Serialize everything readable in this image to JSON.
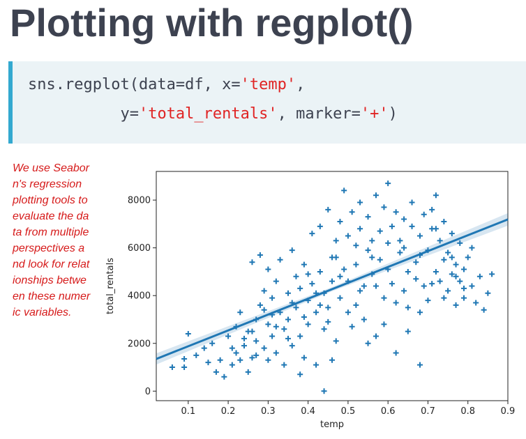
{
  "slide": {
    "title": "Plotting with regplot()",
    "note": "We use Seaborn's regression plotting tools to evaluate the data from multiple perspectives and look for relationships between these numeric variables."
  },
  "code": {
    "line1": {
      "prefix": "sns.regplot(data=df, x=",
      "str1": "'temp'",
      "suffix": ","
    },
    "line2": {
      "indent": "          y=",
      "str1": "'total_rentals'",
      "mid": ", marker=",
      "str2": "'+'",
      "suffix": ")"
    }
  },
  "colors": {
    "title": "#3d4250",
    "code_text": "#3d4250",
    "code_string": "#e02424",
    "code_bg": "#ebf3f6",
    "code_accent": "#33a9d0",
    "note": "#d61a1a",
    "series": "#1f77b4"
  },
  "chart_data": {
    "type": "scatter",
    "xlabel": "temp",
    "ylabel": "total_rentals",
    "xlim": [
      0.02,
      0.9
    ],
    "ylim": [
      -400,
      9200
    ],
    "xticks": [
      "0.1",
      "0.2",
      "0.3",
      "0.4",
      "0.5",
      "0.6",
      "0.7",
      "0.8",
      "0.9"
    ],
    "yticks": [
      "0",
      "2000",
      "4000",
      "6000",
      "8000"
    ],
    "marker": "+",
    "regression": {
      "slope": 6640,
      "intercept": 1215,
      "x_range": [
        0.02,
        0.9
      ]
    },
    "points": [
      [
        0.06,
        1000
      ],
      [
        0.09,
        1350
      ],
      [
        0.09,
        1000
      ],
      [
        0.1,
        2400
      ],
      [
        0.12,
        1500
      ],
      [
        0.14,
        1800
      ],
      [
        0.15,
        1200
      ],
      [
        0.16,
        2000
      ],
      [
        0.17,
        800
      ],
      [
        0.18,
        1300
      ],
      [
        0.19,
        600
      ],
      [
        0.2,
        2300
      ],
      [
        0.21,
        1100
      ],
      [
        0.22,
        2700
      ],
      [
        0.22,
        1600
      ],
      [
        0.23,
        3300
      ],
      [
        0.24,
        1900
      ],
      [
        0.25,
        2500
      ],
      [
        0.25,
        800
      ],
      [
        0.26,
        1400
      ],
      [
        0.26,
        5400
      ],
      [
        0.27,
        3000
      ],
      [
        0.27,
        2100
      ],
      [
        0.28,
        5700
      ],
      [
        0.28,
        3600
      ],
      [
        0.29,
        1800
      ],
      [
        0.29,
        4200
      ],
      [
        0.3,
        2800
      ],
      [
        0.3,
        5100
      ],
      [
        0.31,
        3900
      ],
      [
        0.31,
        2300
      ],
      [
        0.32,
        4600
      ],
      [
        0.32,
        1600
      ],
      [
        0.33,
        3300
      ],
      [
        0.33,
        5500
      ],
      [
        0.34,
        2600
      ],
      [
        0.35,
        4100
      ],
      [
        0.35,
        3000
      ],
      [
        0.36,
        5900
      ],
      [
        0.36,
        1900
      ],
      [
        0.37,
        4800
      ],
      [
        0.37,
        3500
      ],
      [
        0.38,
        2300
      ],
      [
        0.38,
        4300
      ],
      [
        0.39,
        5300
      ],
      [
        0.39,
        1400
      ],
      [
        0.4,
        3800
      ],
      [
        0.4,
        2800
      ],
      [
        0.41,
        6600
      ],
      [
        0.41,
        4500
      ],
      [
        0.42,
        3300
      ],
      [
        0.42,
        1100
      ],
      [
        0.43,
        5000
      ],
      [
        0.43,
        6900
      ],
      [
        0.44,
        2600
      ],
      [
        0.44,
        4100
      ],
      [
        0.44,
        0
      ],
      [
        0.45,
        7600
      ],
      [
        0.45,
        3500
      ],
      [
        0.46,
        5600
      ],
      [
        0.46,
        4600
      ],
      [
        0.47,
        6300
      ],
      [
        0.47,
        2100
      ],
      [
        0.48,
        7100
      ],
      [
        0.48,
        3900
      ],
      [
        0.49,
        5100
      ],
      [
        0.49,
        8400
      ],
      [
        0.5,
        4600
      ],
      [
        0.5,
        6500
      ],
      [
        0.51,
        2700
      ],
      [
        0.51,
        7500
      ],
      [
        0.52,
        5300
      ],
      [
        0.52,
        3600
      ],
      [
        0.53,
        6800
      ],
      [
        0.53,
        7900
      ],
      [
        0.54,
        4400
      ],
      [
        0.54,
        3000
      ],
      [
        0.55,
        5900
      ],
      [
        0.55,
        7300
      ],
      [
        0.56,
        6300
      ],
      [
        0.56,
        4900
      ],
      [
        0.57,
        8200
      ],
      [
        0.57,
        2300
      ],
      [
        0.58,
        6700
      ],
      [
        0.58,
        5500
      ],
      [
        0.59,
        7700
      ],
      [
        0.59,
        3900
      ],
      [
        0.6,
        8700
      ],
      [
        0.6,
        5100
      ],
      [
        0.61,
        6900
      ],
      [
        0.61,
        4500
      ],
      [
        0.62,
        7500
      ],
      [
        0.62,
        1600
      ],
      [
        0.63,
        5800
      ],
      [
        0.63,
        6300
      ],
      [
        0.64,
        4200
      ],
      [
        0.64,
        7200
      ],
      [
        0.65,
        5000
      ],
      [
        0.65,
        3500
      ],
      [
        0.66,
        6900
      ],
      [
        0.66,
        7900
      ],
      [
        0.67,
        5400
      ],
      [
        0.67,
        4700
      ],
      [
        0.68,
        1100
      ],
      [
        0.68,
        6500
      ],
      [
        0.69,
        7400
      ],
      [
        0.69,
        4400
      ],
      [
        0.7,
        5900
      ],
      [
        0.7,
        3800
      ],
      [
        0.71,
        6800
      ],
      [
        0.71,
        7600
      ],
      [
        0.72,
        5000
      ],
      [
        0.72,
        8200
      ],
      [
        0.73,
        4600
      ],
      [
        0.73,
        6300
      ],
      [
        0.74,
        5500
      ],
      [
        0.74,
        7100
      ],
      [
        0.75,
        4200
      ],
      [
        0.75,
        5800
      ],
      [
        0.76,
        6600
      ],
      [
        0.76,
        4900
      ],
      [
        0.77,
        5300
      ],
      [
        0.77,
        3600
      ],
      [
        0.78,
        6200
      ],
      [
        0.78,
        4600
      ],
      [
        0.79,
        5100
      ],
      [
        0.79,
        3900
      ],
      [
        0.8,
        5600
      ],
      [
        0.81,
        4400
      ],
      [
        0.81,
        6000
      ],
      [
        0.82,
        3700
      ],
      [
        0.83,
        4800
      ],
      [
        0.84,
        3400
      ],
      [
        0.85,
        4100
      ],
      [
        0.86,
        4900
      ],
      [
        0.3,
        1300
      ],
      [
        0.34,
        1100
      ],
      [
        0.38,
        700
      ],
      [
        0.46,
        1300
      ],
      [
        0.55,
        2000
      ],
      [
        0.24,
        2200
      ],
      [
        0.27,
        1500
      ],
      [
        0.31,
        3200
      ],
      [
        0.35,
        2200
      ],
      [
        0.4,
        4900
      ],
      [
        0.43,
        3600
      ],
      [
        0.47,
        5600
      ],
      [
        0.52,
        6100
      ],
      [
        0.56,
        5600
      ],
      [
        0.6,
        6200
      ],
      [
        0.64,
        6000
      ],
      [
        0.68,
        5700
      ],
      [
        0.72,
        6800
      ],
      [
        0.76,
        5600
      ],
      [
        0.79,
        4300
      ],
      [
        0.21,
        1800
      ],
      [
        0.23,
        1300
      ],
      [
        0.26,
        2500
      ],
      [
        0.29,
        3400
      ],
      [
        0.32,
        2700
      ],
      [
        0.36,
        3700
      ],
      [
        0.39,
        3100
      ],
      [
        0.42,
        4100
      ],
      [
        0.45,
        2900
      ],
      [
        0.48,
        4800
      ],
      [
        0.5,
        3300
      ],
      [
        0.53,
        4200
      ],
      [
        0.57,
        4400
      ],
      [
        0.59,
        2800
      ],
      [
        0.62,
        3700
      ],
      [
        0.65,
        2500
      ],
      [
        0.68,
        3300
      ],
      [
        0.71,
        4500
      ],
      [
        0.74,
        3900
      ],
      [
        0.77,
        4800
      ]
    ]
  }
}
